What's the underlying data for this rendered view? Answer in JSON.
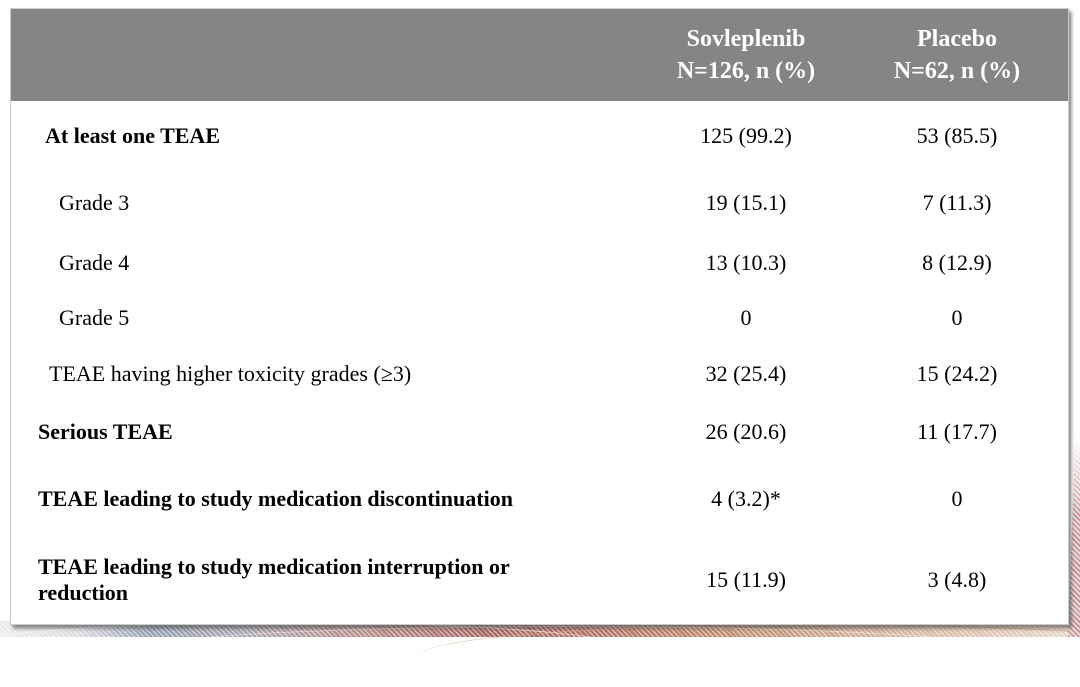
{
  "table": {
    "header": {
      "columns": [
        {
          "line1": "Sovleplenib",
          "line2": "N=126, n (%)"
        },
        {
          "line1": "Placebo",
          "line2": "N=62, n (%)"
        }
      ]
    },
    "rows": [
      {
        "label": "At least one TEAE",
        "sovleplenib": "125 (99.2)",
        "placebo": "53 (85.5)",
        "emphasis": "bold",
        "indent_level": 1
      },
      {
        "label": "Grade 3",
        "sovleplenib": "19 (15.1)",
        "placebo": "7 (11.3)",
        "emphasis": "regular",
        "indent_level": 2
      },
      {
        "label": "Grade 4",
        "sovleplenib": "13 (10.3)",
        "placebo": "8 (12.9)",
        "emphasis": "regular",
        "indent_level": 2
      },
      {
        "label": "Grade 5",
        "sovleplenib": "0",
        "placebo": "0",
        "emphasis": "regular",
        "indent_level": 2
      },
      {
        "label": "TEAE having higher toxicity grades (≥3)",
        "sovleplenib": "32 (25.4)",
        "placebo": "15 (24.2)",
        "emphasis": "regular",
        "indent_level": 1
      },
      {
        "label": "Serious TEAE",
        "sovleplenib": "26 (20.6)",
        "placebo": "11 (17.7)",
        "emphasis": "bold",
        "indent_level": 0
      },
      {
        "label": "TEAE leading to study medication discontinuation",
        "sovleplenib": "4 (3.2)*",
        "placebo": "0",
        "emphasis": "bold",
        "indent_level": 0
      },
      {
        "label": "TEAE leading to study medication interruption or reduction",
        "sovleplenib": "15 (11.9)",
        "placebo": "3 (4.8)",
        "emphasis": "bold",
        "indent_level": 0
      }
    ],
    "footnote_marker": "*"
  },
  "colors": {
    "header_background": "#858585",
    "header_text": "#ffffff",
    "body_text": "#000000",
    "decor_dusty_red": "#a96a66",
    "decor_gray_blue": "#98a1b0",
    "decor_tan": "#c18c6e"
  }
}
